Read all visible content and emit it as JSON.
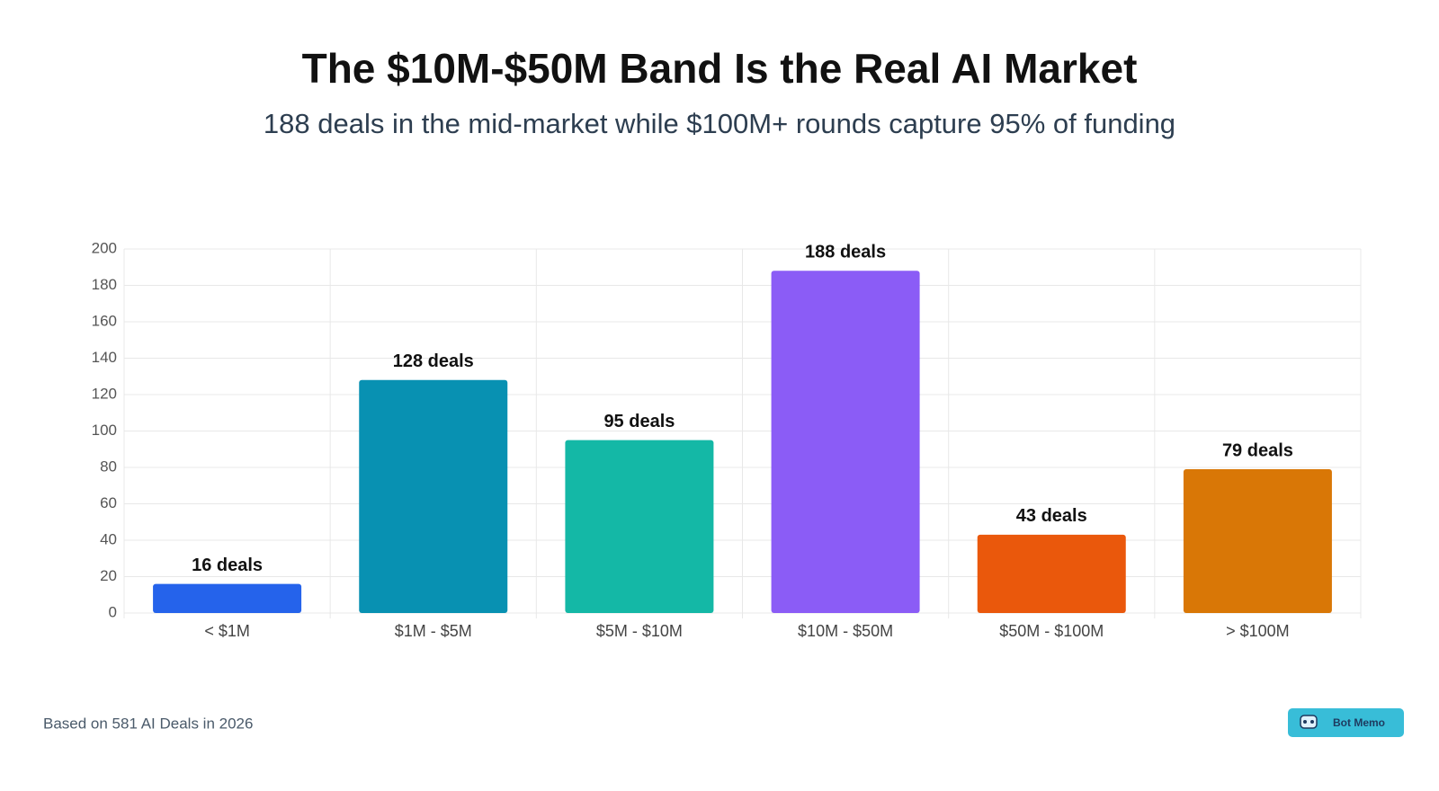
{
  "chart_data": {
    "type": "bar",
    "title": "The $10M-$50M Band Is the Real AI Market",
    "subtitle": "188 deals in the mid-market while $100M+ rounds capture 95% of funding",
    "categories": [
      "< $1M",
      "$1M - $5M",
      "$5M - $10M",
      "$10M - $50M",
      "$50M - $100M",
      "> $100M"
    ],
    "values": [
      16,
      128,
      95,
      188,
      43,
      79
    ],
    "value_labels": [
      "16 deals",
      "128 deals",
      "95 deals",
      "188 deals",
      "43 deals",
      "79 deals"
    ],
    "colors": [
      "#2563eb",
      "#0891b2",
      "#14b8a6",
      "#8b5cf6",
      "#ea580c",
      "#d97706"
    ],
    "ylim": [
      0,
      200
    ],
    "yticks": [
      0,
      20,
      40,
      60,
      80,
      100,
      120,
      140,
      160,
      180,
      200
    ],
    "grid": true,
    "source": "Based on 581 AI Deals in 2026",
    "badge": "Bot Memo"
  }
}
